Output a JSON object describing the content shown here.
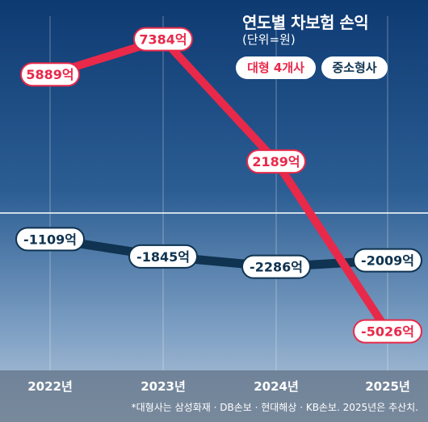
{
  "title": "연도별 차보험 손익",
  "unit": "(단위=원)",
  "note": "*대형사는 삼성화재 · DB손보 · 현대해상 · KB손보. 2025년은 추산치.",
  "colors": {
    "large": "#e8294a",
    "small": "#0f3350",
    "zero_line": "#ffffff"
  },
  "chart_data": {
    "type": "line",
    "title": "연도별 차보험 손익",
    "subtitle": "(단위=원)",
    "x": [
      "2022년",
      "2023년",
      "2024년",
      "2025년"
    ],
    "series": [
      {
        "name": "대형 4개사",
        "values": [
          5889,
          7384,
          2189,
          -5026
        ],
        "labels": [
          "5889억",
          "7384억",
          "2189억",
          "-5026억"
        ]
      },
      {
        "name": "중소형사",
        "values": [
          -1109,
          -1845,
          -2286,
          -2009
        ],
        "labels": [
          "-1109억",
          "-1845억",
          "-2286억",
          "-2009억"
        ]
      }
    ],
    "grid": "vertical",
    "legend": "top-right"
  }
}
